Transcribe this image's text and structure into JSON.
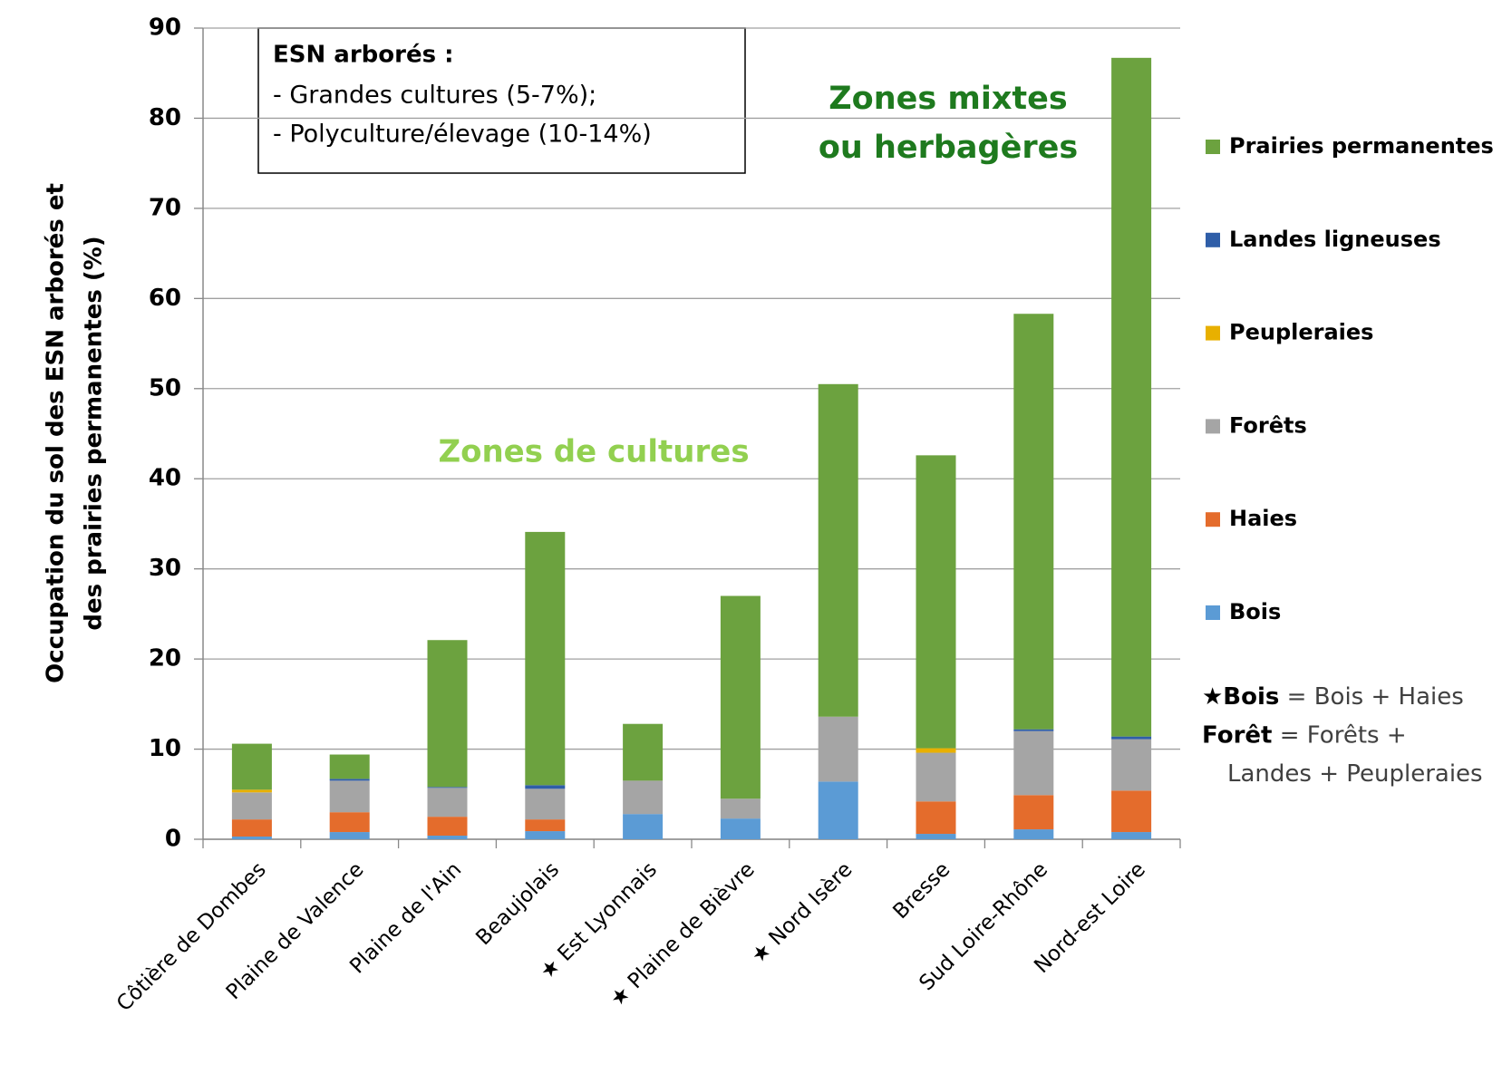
{
  "chart_data": {
    "type": "stacked_bar",
    "y_axis_label": [
      "Occupation du sol des ESN arborés et",
      "des prairies permanentes (%)"
    ],
    "categories": [
      "Côtière de Dombes",
      "Plaine de Valence",
      "Plaine de l'Ain",
      "Beaujolais",
      "★ Est Lyonnais",
      "★ Plaine de Bièvre",
      "★ Nord Isère",
      "Bresse",
      "Sud Loire-Rhône",
      "Nord-est Loire"
    ],
    "series": [
      {
        "name": "Bois",
        "color": "#5b9bd5",
        "values": [
          0.3,
          0.8,
          0.4,
          0.9,
          2.8,
          2.3,
          6.4,
          0.6,
          1.1,
          0.8
        ]
      },
      {
        "name": "Haies",
        "color": "#e46c2c",
        "values": [
          1.9,
          2.2,
          2.1,
          1.3,
          0,
          0,
          0,
          3.6,
          3.8,
          4.6
        ]
      },
      {
        "name": "Forêts",
        "color": "#a5a5a5",
        "values": [
          3.0,
          3.5,
          3.2,
          3.4,
          3.7,
          2.2,
          7.2,
          5.4,
          7.1,
          5.7
        ]
      },
      {
        "name": "Peupleraies",
        "color": "#e8b000",
        "values": [
          0.3,
          0,
          0,
          0,
          0,
          0,
          0,
          0.5,
          0,
          0
        ]
      },
      {
        "name": "Landes ligneuses",
        "color": "#2f5ea8",
        "values": [
          0,
          0.2,
          0.1,
          0.4,
          0,
          0,
          0,
          0,
          0.2,
          0.3
        ]
      },
      {
        "name": "Prairies permanentes",
        "color": "#6ca23f",
        "values": [
          5.1,
          2.7,
          16.3,
          28.1,
          6.3,
          22.5,
          36.9,
          32.5,
          46.1,
          75.3
        ]
      }
    ],
    "ylim": [
      0,
      90
    ],
    "yticks": [
      0,
      10,
      20,
      30,
      40,
      50,
      60,
      70,
      80,
      90
    ],
    "grid": true,
    "annotations": {
      "box": [
        "ESN arborés  :",
        "- Grandes  cultures (5-7%);",
        "- Polyculture/élevage (10-14%)"
      ],
      "zones_cultures": "Zones de cultures",
      "zones_mixtes": [
        "Zones mixtes",
        "ou herbagères"
      ],
      "notes": [
        {
          "bold": "★Bois",
          "text": " = Bois + Haies"
        },
        {
          "bold": "Forêt",
          "text": " = Forêts +"
        },
        {
          "bold": "",
          "text": "Landes + Peupleraies"
        }
      ]
    }
  }
}
